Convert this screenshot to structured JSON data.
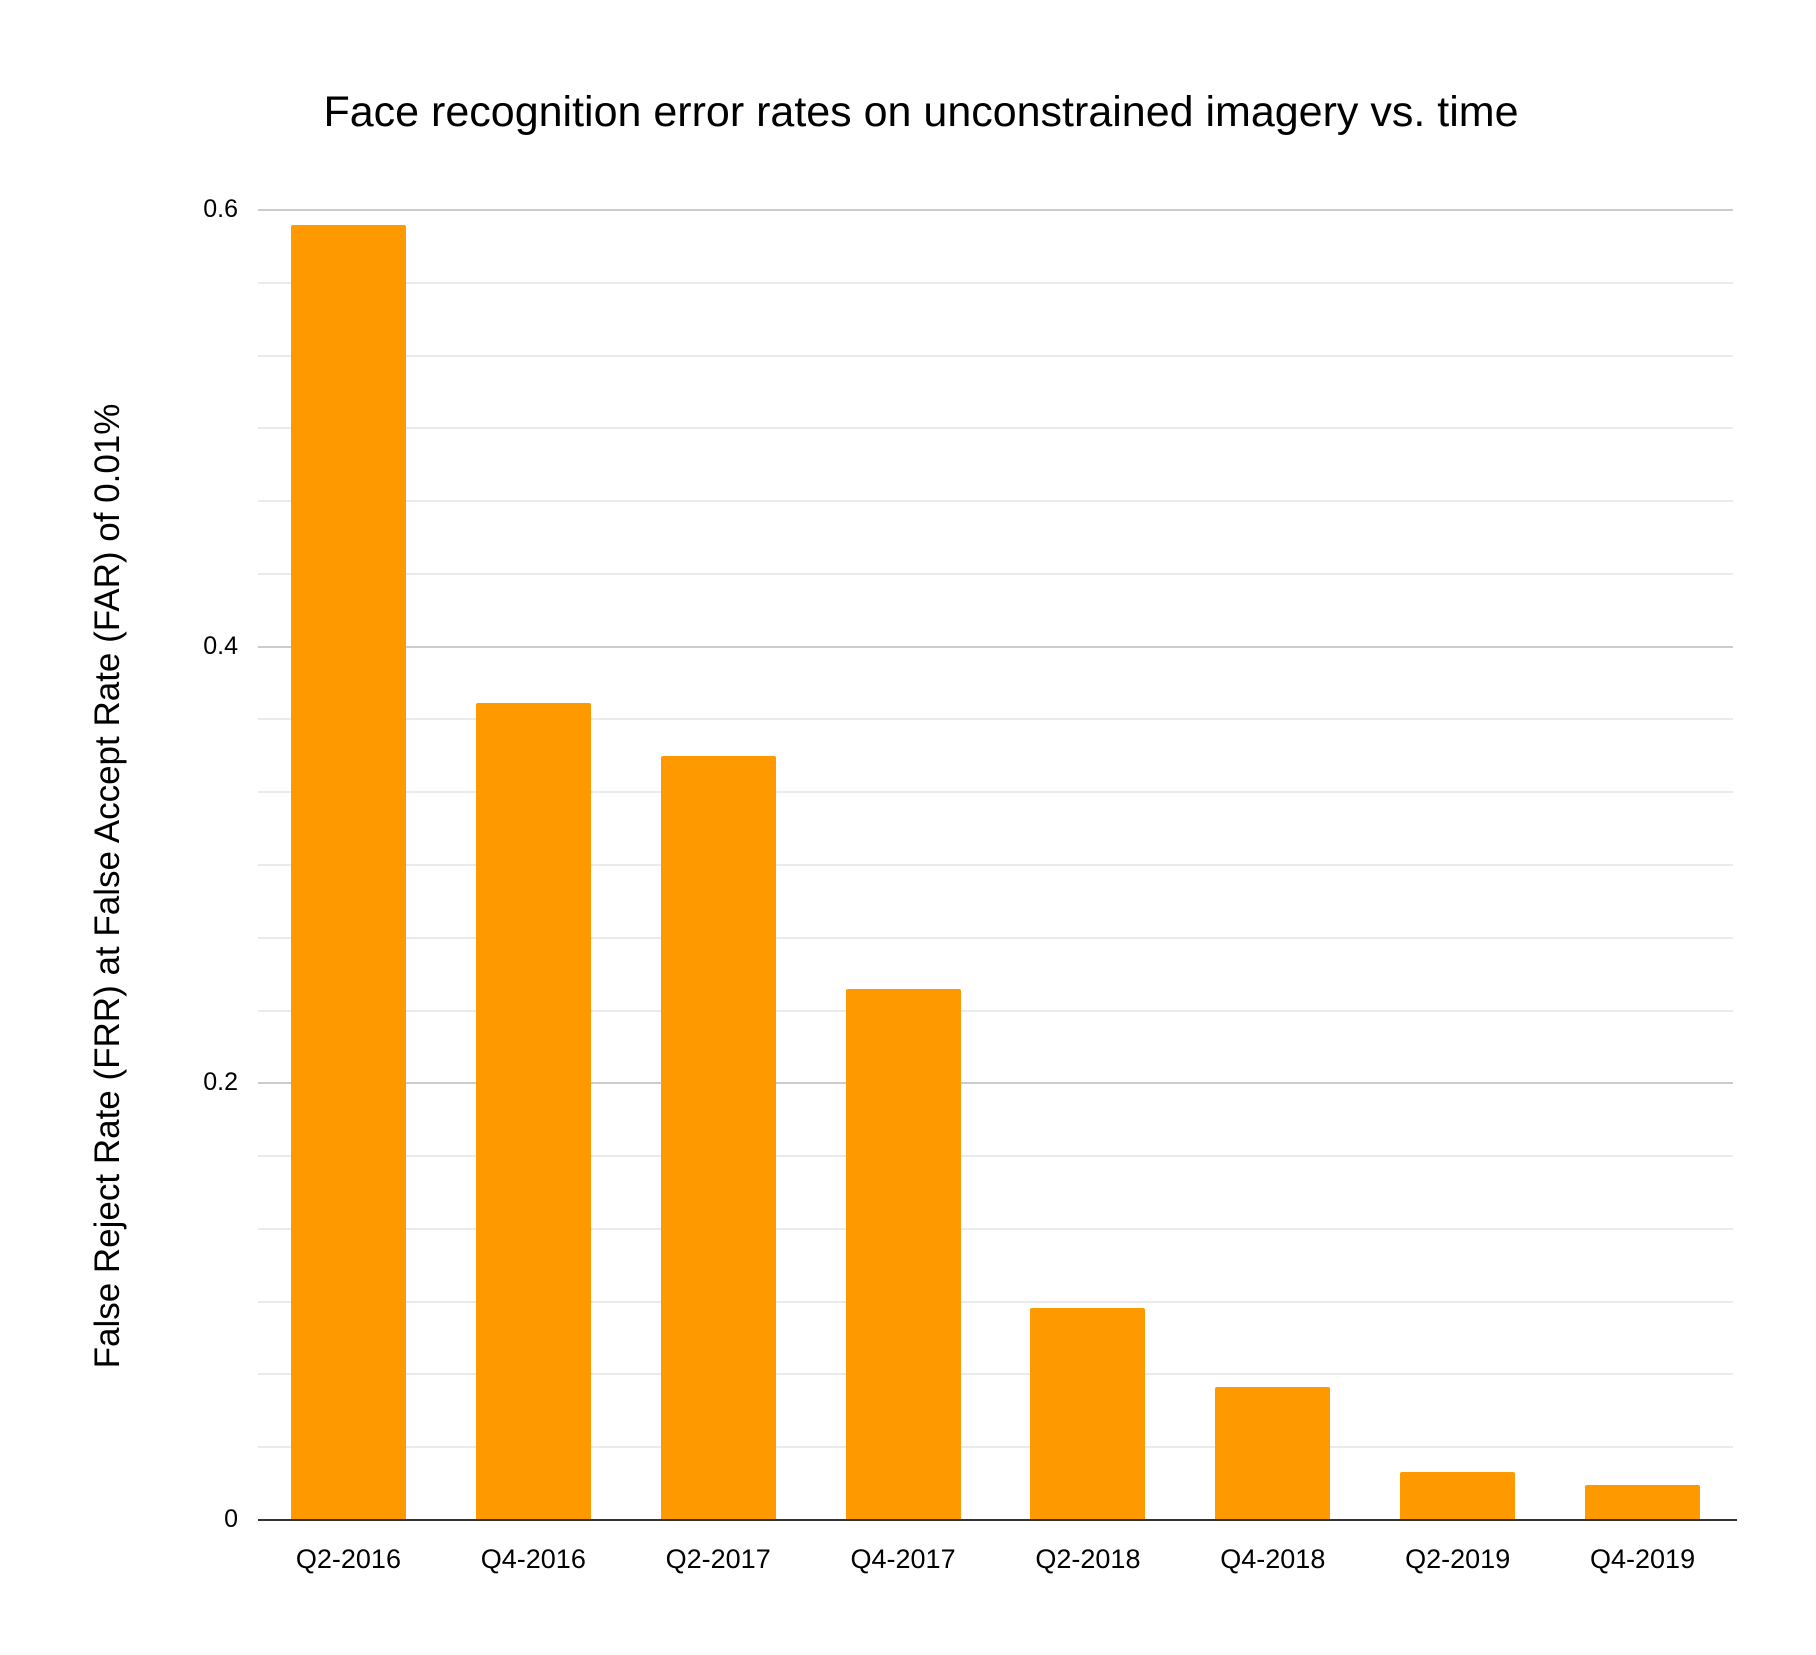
{
  "chart_data": {
    "type": "bar",
    "title": "Face recognition error rates on unconstrained imagery vs. time",
    "xlabel": "",
    "ylabel": "False Reject Rate (FRR) at False Accept Rate (FAR) of 0.01%",
    "categories": [
      "Q2-2016",
      "Q4-2016",
      "Q2-2017",
      "Q4-2017",
      "Q2-2018",
      "Q4-2018",
      "Q2-2019",
      "Q4-2019"
    ],
    "values": [
      0.593,
      0.374,
      0.35,
      0.243,
      0.097,
      0.061,
      0.022,
      0.016
    ],
    "ylim": [
      0,
      0.6
    ],
    "yticks": [
      0,
      0.2,
      0.4,
      0.6
    ],
    "ytick_labels": [
      "0",
      "0.2",
      "0.4",
      "0.6"
    ],
    "grid": true,
    "minor_gridlines_per_major": 3,
    "legend": null,
    "bar_color": "#ff9900"
  }
}
